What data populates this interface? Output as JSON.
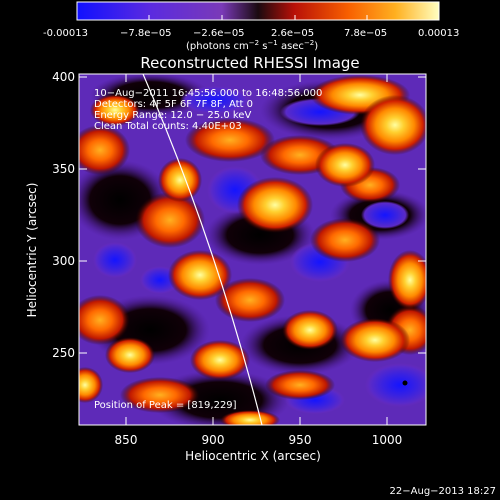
{
  "colorbar": {
    "ticks": [
      "-0.00013",
      "−7.8e−05",
      "−2.6e−05",
      "2.6e−05",
      "7.8e−05",
      "0.00013"
    ],
    "units_main": "(photons cm",
    "units_sup1": "−2",
    "units_mid1": " s",
    "units_sup2": "−1",
    "units_mid2": " asec",
    "units_sup3": "−2",
    "units_end": ")"
  },
  "title": "Reconstructed RHESSI Image",
  "info": {
    "time": "10−Aug−2011 16:45:56.000 to 16:48:56.000",
    "detectors": "Detectors: 4F 5F 6F 7F 8F, Att 0",
    "energy": "Energy Range: 12.0 − 25.0 keV",
    "clean": "Clean     Total counts: 4.40E+03"
  },
  "peak_label": "Position of Peak = [819,229]",
  "axes": {
    "xlabel": "Heliocentric X (arcsec)",
    "ylabel": "Heliocentric Y (arcsec)",
    "x_ticks": [
      "850",
      "900",
      "950",
      "1000"
    ],
    "y_ticks": [
      "400",
      "350",
      "300",
      "250"
    ]
  },
  "timestamp": "22−Aug−2013 18:27",
  "colors": {
    "background": "#000000",
    "limb": "#ffffff",
    "cmap": [
      "#0000ff",
      "#4a1fd8",
      "#6a2cc0",
      "#000000",
      "#c41c08",
      "#f55a00",
      "#ff9a00",
      "#ffd030",
      "#ffff90"
    ]
  }
}
